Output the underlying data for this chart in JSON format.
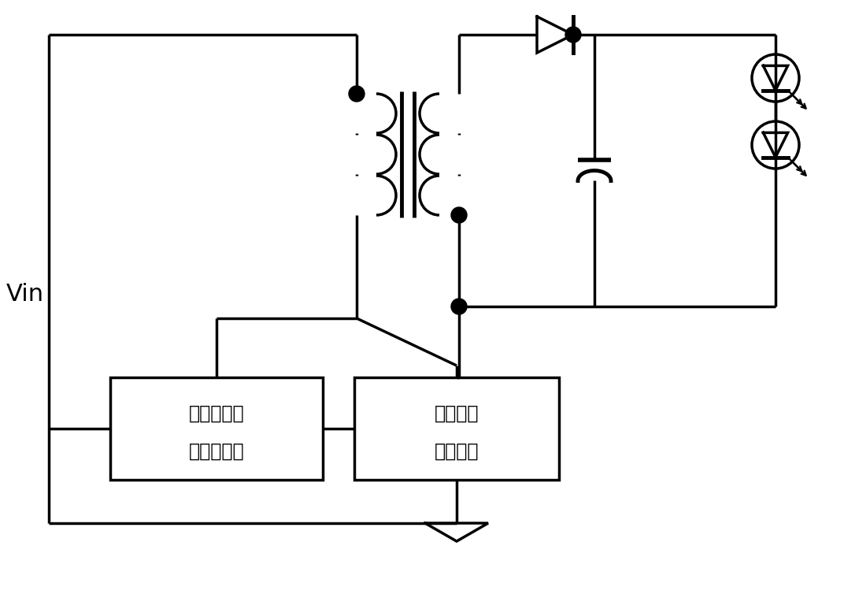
{
  "background_color": "#ffffff",
  "line_color": "#000000",
  "line_width": 2.5,
  "box1_label_line1": "原边恒流驱",
  "box1_label_line2": "动控制单元",
  "box2_label_line1": "原边电流",
  "box2_label_line2": "采样单元",
  "vin_label": "Vin",
  "fig_width": 10.72,
  "fig_height": 7.59
}
